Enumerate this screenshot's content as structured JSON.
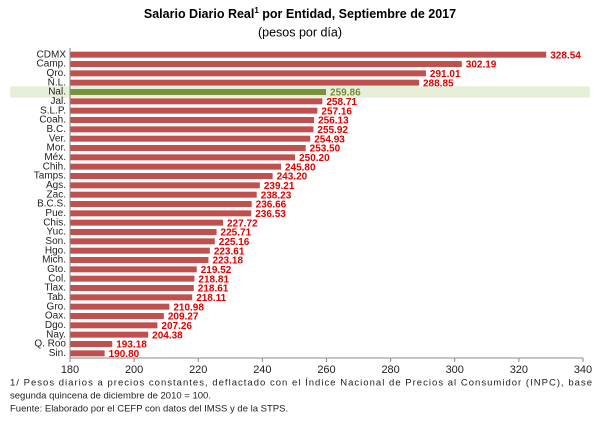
{
  "chart_data": {
    "type": "hbar",
    "title": "Salario Diario Real",
    "title_sup": "1",
    "title_rest": " por Entidad, Septiembre de 2017",
    "subtitle": "(pesos por día)",
    "categories": [
      "CDMX",
      "Camp.",
      "Qro.",
      "N.L.",
      "Nal.",
      "Jal.",
      "S.L.P.",
      "Coah.",
      "B.C.",
      "Ver.",
      "Mor.",
      "Méx.",
      "Chih.",
      "Tamps.",
      "Ags.",
      "Zac.",
      "B.C.S.",
      "Pue.",
      "Chis.",
      "Yuc.",
      "Son.",
      "Hgo.",
      "Mich.",
      "Gto.",
      "Col.",
      "Tlax.",
      "Tab.",
      "Gro.",
      "Oax.",
      "Dgo.",
      "Nay.",
      "Q. Roo",
      "Sin."
    ],
    "values": [
      328.54,
      302.19,
      291.01,
      288.85,
      259.86,
      258.71,
      257.16,
      256.13,
      255.92,
      254.93,
      253.5,
      250.2,
      245.8,
      243.2,
      239.21,
      238.23,
      236.66,
      236.53,
      227.72,
      225.71,
      225.16,
      223.61,
      223.18,
      219.52,
      218.81,
      218.61,
      218.11,
      210.98,
      209.27,
      207.26,
      204.38,
      193.18,
      190.8
    ],
    "value_labels": [
      "328.54",
      "302.19",
      "291.01",
      "288.85",
      "259.86",
      "258.71",
      "257.16",
      "256.13",
      "255.92",
      "254.93",
      "253.50",
      "250.20",
      "245.80",
      "243.20",
      "239.21",
      "238.23",
      "236.66",
      "236.53",
      "227.72",
      "225.71",
      "225.16",
      "223.61",
      "223.18",
      "219.52",
      "218.81",
      "218.61",
      "218.11",
      "210.98",
      "209.27",
      "207.26",
      "204.38",
      "193.18",
      "190.80"
    ],
    "color": "#c0504d",
    "label_color": "#e00000",
    "highlight": "Nal.",
    "highlight_color": "#77933c",
    "highlight_label_color": "#6f8f2f",
    "highlight_band": "#e8efd8",
    "xlim": [
      180,
      340
    ],
    "xticks": [
      180,
      200,
      220,
      240,
      260,
      280,
      300,
      320,
      340
    ],
    "grid": false,
    "notes": [
      "1/ Pesos diarios a precios constantes, deflactado con el Índice Nacional de Precios al Consumidor (INPC), base",
      "segunda quincena de diciembre de 2010 = 100.",
      "Fuente: Elaborado por el CEFP con datos  del IMSS y de la STPS."
    ]
  }
}
